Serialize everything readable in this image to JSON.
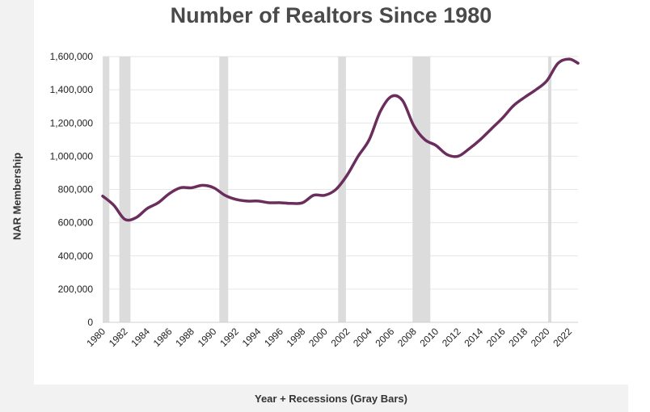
{
  "chart_data": {
    "type": "line",
    "title": "Number of Realtors Since 1980",
    "xlabel": "Year + Recessions (Gray Bars)",
    "ylabel": "NAR Membership",
    "xlim": [
      1980,
      2022.8
    ],
    "ylim": [
      0,
      1600000
    ],
    "y_ticks": [
      0,
      200000,
      400000,
      600000,
      800000,
      1000000,
      1200000,
      1400000,
      1600000
    ],
    "y_tick_labels": [
      "0",
      "200,000",
      "400,000",
      "600,000",
      "800,000",
      "1,000,000",
      "1,200,000",
      "1,400,000",
      "1,600,000"
    ],
    "x_ticks": [
      1980,
      1982,
      1984,
      1986,
      1988,
      1990,
      1992,
      1994,
      1996,
      1998,
      2000,
      2002,
      2004,
      2006,
      2008,
      2010,
      2012,
      2014,
      2016,
      2018,
      2020,
      2022
    ],
    "x_tick_labels": [
      "1980",
      "1982",
      "1984",
      "1986",
      "1988",
      "1990",
      "1992",
      "1994",
      "1996",
      "1998",
      "2000",
      "2002",
      "2004",
      "2006",
      "2008",
      "2010",
      "2012",
      "2014",
      "2016",
      "2018",
      "2020",
      "2022"
    ],
    "grid": true,
    "recessions": [
      [
        1980.0,
        1980.6
      ],
      [
        1981.5,
        1982.5
      ],
      [
        1990.5,
        1991.3
      ],
      [
        2001.2,
        2001.9
      ],
      [
        2007.9,
        2009.5
      ],
      [
        2020.1,
        2020.4
      ]
    ],
    "series": [
      {
        "color": "#6b2d5c",
        "x": [
          1980,
          1981,
          1982,
          1983,
          1984,
          1985,
          1986,
          1987,
          1988,
          1989,
          1990,
          1991,
          1992,
          1993,
          1994,
          1995,
          1996,
          1997,
          1998,
          1999,
          2000,
          2001,
          2002,
          2003,
          2004,
          2005,
          2006,
          2007,
          2008,
          2009,
          2010,
          2011,
          2012,
          2013,
          2014,
          2015,
          2016,
          2017,
          2018,
          2019,
          2020,
          2021,
          2022,
          2022.8
        ],
        "values": [
          760000,
          705000,
          620000,
          630000,
          685000,
          720000,
          775000,
          810000,
          810000,
          825000,
          810000,
          765000,
          740000,
          730000,
          730000,
          720000,
          720000,
          716000,
          720000,
          765000,
          765000,
          800000,
          885000,
          1000000,
          1100000,
          1270000,
          1360000,
          1335000,
          1185000,
          1100000,
          1065000,
          1010000,
          1000000,
          1045000,
          1100000,
          1165000,
          1230000,
          1305000,
          1355000,
          1400000,
          1455000,
          1560000,
          1585000,
          1560000
        ]
      }
    ],
    "colors": {
      "recession_band": "#dcdcdc",
      "gridline": "#e6e6e6",
      "frame_band": "#f2f2f2"
    }
  }
}
